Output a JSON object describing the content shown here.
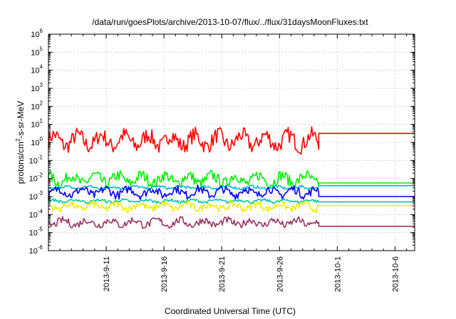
{
  "chart_data": {
    "type": "line",
    "title": "/data/run/goesPlots/archive/2013-10-07/flux/../flux/31daysMoonFluxes.txt",
    "xlabel": "Coordinated Universal Time (UTC)",
    "ylabel": "protons/cm2-s-sr-MeV",
    "ylabel_parts": {
      "pre": "protons/cm",
      "sup": "2",
      "post": "-s-sr-MeV"
    },
    "yscale": "log",
    "ylim_exponents": [
      -6,
      6
    ],
    "y_tick_base": "10",
    "y_tick_exponents": [
      "-6",
      "-5",
      "-4",
      "-3",
      "-2",
      "-1",
      "0",
      "1",
      "2",
      "3",
      "4",
      "5",
      "6"
    ],
    "xlim_days": [
      0,
      31.7
    ],
    "x_ticks": [
      {
        "label": "2013-9-11",
        "day": 5
      },
      {
        "label": "2013-9-16",
        "day": 10
      },
      {
        "label": "2013-9-21",
        "day": 15
      },
      {
        "label": "2013-9-26",
        "day": 20
      },
      {
        "label": "2013-10-1",
        "day": 25
      },
      {
        "label": "2013-10-6",
        "day": 30
      }
    ],
    "grid": true,
    "legend": "none",
    "data_end_day": 23.4,
    "series": [
      {
        "color": "#ff0000",
        "data_level_log10": 0.1,
        "noise": 0.55,
        "end_log10": 0.5
      },
      {
        "color": "#00ee00",
        "data_level_log10": -2.05,
        "noise": 0.4,
        "end_log10": -2.25
      },
      {
        "color": "#00bcd4",
        "data_level_log10": -2.5,
        "noise": 0.1,
        "end_log10": -2.4
      },
      {
        "color": "#0000ee",
        "data_level_log10": -2.75,
        "noise": 0.3,
        "end_log10": -3.0
      },
      {
        "color": "#00c8a0",
        "data_level_log10": -3.25,
        "noise": 0.1,
        "end_log10": -3.3
      },
      {
        "color": "#eeee00",
        "data_level_log10": -3.55,
        "noise": 0.25,
        "end_log10": -3.5
      },
      {
        "color": "#993366",
        "data_level_log10": -4.45,
        "noise": 0.25,
        "end_log10": -4.65
      }
    ]
  }
}
